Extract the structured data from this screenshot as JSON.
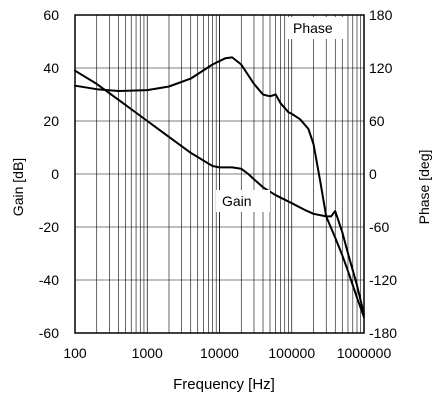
{
  "chart_data": {
    "type": "line",
    "title": "",
    "xlabel": "Frequency [Hz]",
    "ylabel_left": "Gain [dB]",
    "ylabel_right": "Phase [deg]",
    "xscale": "log",
    "xlim": [
      100,
      1000000
    ],
    "ylim_left": [
      -60,
      60
    ],
    "ylim_right": [
      -180,
      180
    ],
    "grid": true,
    "x_ticks": [
      "100",
      "1000",
      "10000",
      "100000",
      "1000000"
    ],
    "y_ticks_left": [
      "60",
      "40",
      "20",
      "0",
      "-20",
      "-40",
      "-60"
    ],
    "y_ticks_right": [
      "180",
      "120",
      "60",
      "0",
      "-60",
      "-120",
      "-180"
    ],
    "series": [
      {
        "name": "Phase",
        "axis": "right",
        "x": [
          100,
          200,
          400,
          1000,
          2000,
          4000,
          8000,
          12000,
          15000,
          20000,
          30000,
          40000,
          50000,
          60000,
          70000,
          90000,
          100000,
          130000,
          170000,
          200000,
          250000,
          300000,
          400000,
          500000,
          600000,
          800000,
          1000000
        ],
        "y": [
          100,
          96,
          94,
          95,
          99,
          108,
          124,
          131,
          132,
          124,
          102,
          90,
          88,
          90,
          80,
          70,
          68,
          62,
          51,
          34,
          -10,
          -48,
          -72,
          -92,
          -110,
          -140,
          -162
        ]
      },
      {
        "name": "Gain",
        "axis": "left",
        "x": [
          100,
          200,
          400,
          1000,
          2000,
          4000,
          8000,
          10000,
          15000,
          20000,
          25000,
          30000,
          40000,
          60000,
          100000,
          150000,
          200000,
          300000,
          350000,
          400000,
          500000,
          600000,
          800000,
          1000000
        ],
        "y": [
          39,
          34,
          28,
          20,
          14,
          8,
          3,
          2.5,
          2.5,
          2,
          0,
          -2,
          -5,
          -8,
          -11,
          -13.5,
          -15,
          -16,
          -16,
          -14,
          -22,
          -30,
          -42,
          -53
        ]
      }
    ],
    "annotations": [
      "Phase",
      "Gain"
    ]
  }
}
